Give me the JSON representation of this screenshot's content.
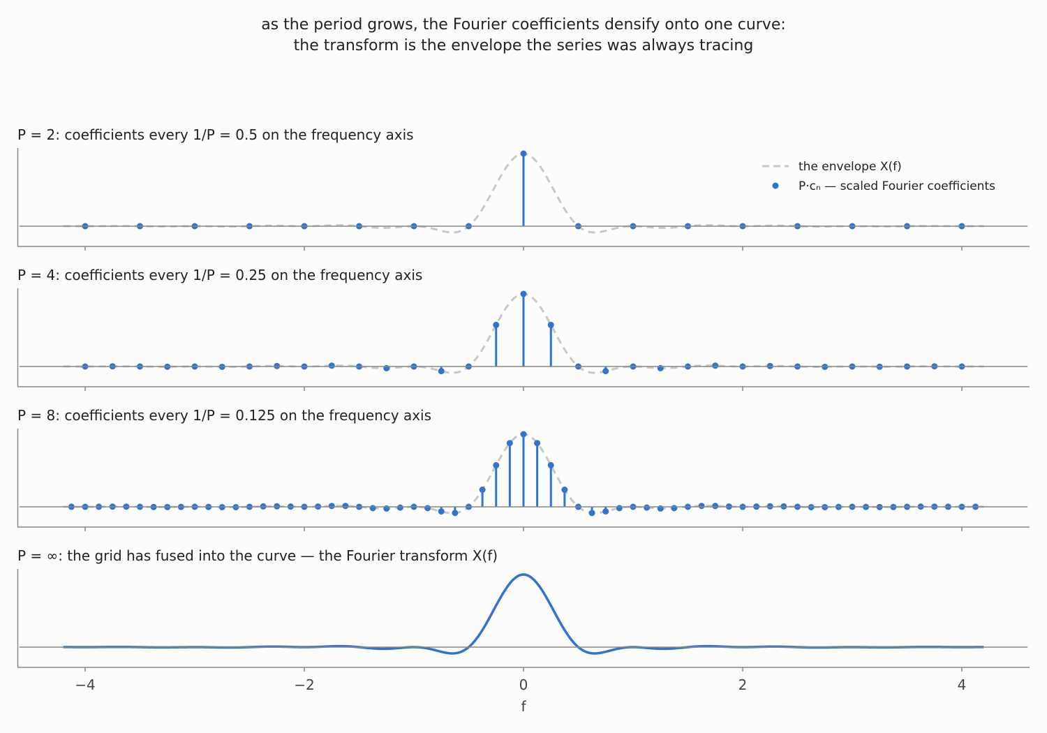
{
  "title_line1": "as the period grows, the Fourier coefficients densify onto one curve:",
  "title_line2": "the transform is the envelope the series was always tracing",
  "colors": {
    "stem": "#2e74d0",
    "envelope": "#c8c8c8",
    "axis": "#888888",
    "text": "#222222",
    "background": "#fcfcfa"
  },
  "legend": {
    "envelope_label": "the envelope X(f)",
    "coeff_label": "P·cₙ — scaled Fourier coefficients"
  },
  "chart_data": [
    {
      "type": "stem",
      "title": "P = 2:  coefficients every 1/P = 0.5 on the frequency axis",
      "period": 2,
      "spacing": 0.5,
      "xlim": [
        -4.6,
        4.6
      ],
      "envelope": "sinc(f)^2 * cos(pi f)",
      "legend": "top-right"
    },
    {
      "type": "stem",
      "title": "P = 4:  coefficients every 1/P = 0.25 on the frequency axis",
      "period": 4,
      "spacing": 0.25,
      "xlim": [
        -4.6,
        4.6
      ],
      "envelope": "sinc(f)^2 * cos(pi f)"
    },
    {
      "type": "stem",
      "title": "P = 8:  coefficients every 1/P = 0.125 on the frequency axis",
      "period": 8,
      "spacing": 0.125,
      "xlim": [
        -4.6,
        4.6
      ],
      "envelope": "sinc(f)^2 * cos(pi f)"
    },
    {
      "type": "line",
      "title": "P = ∞:  the grid has fused into the curve — the Fourier transform X(f)",
      "xlim": [
        -4.6,
        4.6
      ],
      "x_range": [
        -4.2,
        4.2
      ],
      "function": "sinc(f)^2 * cos(pi f)",
      "xlabel": "f",
      "xticks": [
        -4,
        -2,
        0,
        2,
        4
      ],
      "xtick_labels": [
        "−4",
        "−2",
        "0",
        "2",
        "4"
      ]
    }
  ]
}
